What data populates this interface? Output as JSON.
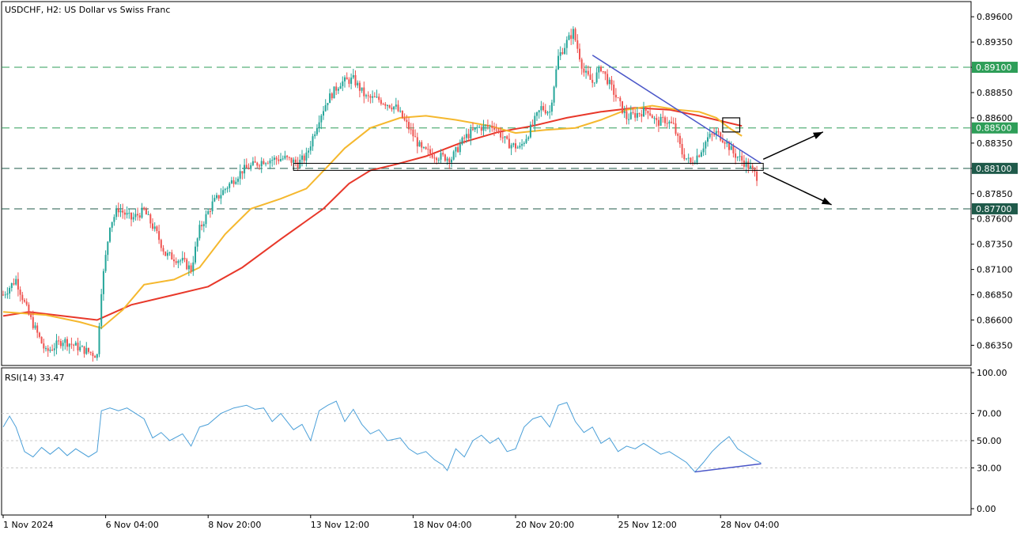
{
  "main_pane": {
    "title": "USDCHF, H2:  US Dollar vs Swiss Franc",
    "y_ticks": [
      "0.89600",
      "0.89350",
      "0.89100",
      "0.88850",
      "0.88600",
      "0.88350",
      "0.88100",
      "0.87850",
      "0.87600",
      "0.87350",
      "0.87100",
      "0.86850",
      "0.86600",
      "0.86350"
    ],
    "y_tick_values": [
      0.896,
      0.8935,
      0.891,
      0.8885,
      0.886,
      0.8835,
      0.881,
      0.8785,
      0.876,
      0.8735,
      0.871,
      0.8685,
      0.866,
      0.8635
    ],
    "level_labels": [
      {
        "text": "0.89100",
        "value": 0.891,
        "color": "#2e9e58"
      },
      {
        "text": "0.88500",
        "value": 0.885,
        "color": "#2e9e58"
      },
      {
        "text": "0.88100",
        "value": 0.881,
        "color": "#1f5a4a"
      },
      {
        "text": "0.87700",
        "value": 0.877,
        "color": "#1f5a4a"
      }
    ]
  },
  "rsi_pane": {
    "title": "RSI(14) 33.47",
    "y_ticks": [
      "100.00",
      "70.00",
      "50.00",
      "30.00",
      "0.00"
    ],
    "y_tick_values": [
      100,
      70,
      50,
      30,
      0
    ]
  },
  "x_axis": {
    "labels": [
      "1 Nov 2024",
      "6 Nov 04:00",
      "8 Nov 20:00",
      "13 Nov 12:00",
      "18 Nov 04:00",
      "20 Nov 20:00",
      "25 Nov 12:00",
      "28 Nov 04:00"
    ],
    "bar_index": [
      0,
      48,
      96,
      144,
      192,
      240,
      288,
      336
    ]
  },
  "colors": {
    "bull": "#26a69a",
    "bear": "#ef5350",
    "ma_slow": "#e8382a",
    "ma_fast": "#f5b82e",
    "rsi": "#4a9fd8",
    "trendline": "#4a56c8",
    "level_green": "#2e9e58",
    "level_dark": "#1f5a4a",
    "grid": "#c8c8c8"
  },
  "chart_data": [
    {
      "type": "candlestick",
      "symbol": "USDCHF",
      "timeframe": "H2",
      "title": "USDCHF, H2:  US Dollar vs Swiss Franc",
      "ylim": [
        0.8615,
        0.8975
      ],
      "x_range_bars": [
        0,
        360
      ],
      "price_path": [
        {
          "bar": 0,
          "price": 0.8685
        },
        {
          "bar": 6,
          "price": 0.87
        },
        {
          "bar": 12,
          "price": 0.8665
        },
        {
          "bar": 20,
          "price": 0.8628
        },
        {
          "bar": 28,
          "price": 0.864
        },
        {
          "bar": 36,
          "price": 0.8632
        },
        {
          "bar": 44,
          "price": 0.8625
        },
        {
          "bar": 46,
          "price": 0.869
        },
        {
          "bar": 50,
          "price": 0.8755
        },
        {
          "bar": 54,
          "price": 0.877
        },
        {
          "bar": 60,
          "price": 0.876
        },
        {
          "bar": 66,
          "price": 0.8768
        },
        {
          "bar": 72,
          "price": 0.8745
        },
        {
          "bar": 76,
          "price": 0.8725
        },
        {
          "bar": 84,
          "price": 0.8718
        },
        {
          "bar": 88,
          "price": 0.871
        },
        {
          "bar": 92,
          "price": 0.875
        },
        {
          "bar": 98,
          "price": 0.8775
        },
        {
          "bar": 104,
          "price": 0.879
        },
        {
          "bar": 112,
          "price": 0.8808
        },
        {
          "bar": 122,
          "price": 0.8818
        },
        {
          "bar": 132,
          "price": 0.882
        },
        {
          "bar": 138,
          "price": 0.8815
        },
        {
          "bar": 142,
          "price": 0.8822
        },
        {
          "bar": 148,
          "price": 0.886
        },
        {
          "bar": 152,
          "price": 0.8878
        },
        {
          "bar": 158,
          "price": 0.8895
        },
        {
          "bar": 164,
          "price": 0.8898
        },
        {
          "bar": 170,
          "price": 0.888
        },
        {
          "bar": 176,
          "price": 0.8878
        },
        {
          "bar": 184,
          "price": 0.887
        },
        {
          "bar": 190,
          "price": 0.885
        },
        {
          "bar": 196,
          "price": 0.8828
        },
        {
          "bar": 204,
          "price": 0.8822
        },
        {
          "bar": 210,
          "price": 0.882
        },
        {
          "bar": 216,
          "price": 0.884
        },
        {
          "bar": 222,
          "price": 0.885
        },
        {
          "bar": 230,
          "price": 0.8852
        },
        {
          "bar": 236,
          "price": 0.8835
        },
        {
          "bar": 242,
          "price": 0.883
        },
        {
          "bar": 246,
          "price": 0.8845
        },
        {
          "bar": 252,
          "price": 0.887
        },
        {
          "bar": 256,
          "price": 0.8866
        },
        {
          "bar": 260,
          "price": 0.892
        },
        {
          "bar": 264,
          "price": 0.8935
        },
        {
          "bar": 267,
          "price": 0.8945
        },
        {
          "bar": 272,
          "price": 0.8905
        },
        {
          "bar": 276,
          "price": 0.8895
        },
        {
          "bar": 280,
          "price": 0.891
        },
        {
          "bar": 286,
          "price": 0.8885
        },
        {
          "bar": 292,
          "price": 0.886
        },
        {
          "bar": 298,
          "price": 0.8865
        },
        {
          "bar": 302,
          "price": 0.8868
        },
        {
          "bar": 306,
          "price": 0.8855
        },
        {
          "bar": 310,
          "price": 0.8858
        },
        {
          "bar": 314,
          "price": 0.8852
        },
        {
          "bar": 318,
          "price": 0.8825
        },
        {
          "bar": 322,
          "price": 0.8815
        },
        {
          "bar": 326,
          "price": 0.8825
        },
        {
          "bar": 330,
          "price": 0.884
        },
        {
          "bar": 334,
          "price": 0.8845
        },
        {
          "bar": 338,
          "price": 0.8838
        },
        {
          "bar": 342,
          "price": 0.8825
        },
        {
          "bar": 346,
          "price": 0.8818
        },
        {
          "bar": 350,
          "price": 0.881
        },
        {
          "bar": 353,
          "price": 0.8802
        }
      ],
      "ma_fast": [
        {
          "bar": 0,
          "price": 0.8668
        },
        {
          "bar": 20,
          "price": 0.8665
        },
        {
          "bar": 36,
          "price": 0.8658
        },
        {
          "bar": 46,
          "price": 0.8652
        },
        {
          "bar": 56,
          "price": 0.867
        },
        {
          "bar": 66,
          "price": 0.8695
        },
        {
          "bar": 80,
          "price": 0.87
        },
        {
          "bar": 92,
          "price": 0.8712
        },
        {
          "bar": 104,
          "price": 0.8745
        },
        {
          "bar": 116,
          "price": 0.877
        },
        {
          "bar": 130,
          "price": 0.878
        },
        {
          "bar": 142,
          "price": 0.879
        },
        {
          "bar": 152,
          "price": 0.8812
        },
        {
          "bar": 160,
          "price": 0.883
        },
        {
          "bar": 172,
          "price": 0.885
        },
        {
          "bar": 186,
          "price": 0.886
        },
        {
          "bar": 198,
          "price": 0.8862
        },
        {
          "bar": 212,
          "price": 0.8858
        },
        {
          "bar": 228,
          "price": 0.8852
        },
        {
          "bar": 240,
          "price": 0.8845
        },
        {
          "bar": 254,
          "price": 0.8848
        },
        {
          "bar": 268,
          "price": 0.885
        },
        {
          "bar": 280,
          "price": 0.8858
        },
        {
          "bar": 292,
          "price": 0.8868
        },
        {
          "bar": 304,
          "price": 0.8872
        },
        {
          "bar": 316,
          "price": 0.8868
        },
        {
          "bar": 326,
          "price": 0.8866
        },
        {
          "bar": 334,
          "price": 0.886
        },
        {
          "bar": 340,
          "price": 0.885
        },
        {
          "bar": 346,
          "price": 0.8842
        }
      ],
      "ma_slow": [
        {
          "bar": 0,
          "price": 0.8664
        },
        {
          "bar": 12,
          "price": 0.8668
        },
        {
          "bar": 28,
          "price": 0.8664
        },
        {
          "bar": 44,
          "price": 0.866
        },
        {
          "bar": 60,
          "price": 0.8675
        },
        {
          "bar": 80,
          "price": 0.8685
        },
        {
          "bar": 96,
          "price": 0.8693
        },
        {
          "bar": 112,
          "price": 0.8712
        },
        {
          "bar": 130,
          "price": 0.874
        },
        {
          "bar": 150,
          "price": 0.877
        },
        {
          "bar": 162,
          "price": 0.8795
        },
        {
          "bar": 172,
          "price": 0.8808
        },
        {
          "bar": 184,
          "price": 0.8814
        },
        {
          "bar": 198,
          "price": 0.8822
        },
        {
          "bar": 214,
          "price": 0.8835
        },
        {
          "bar": 232,
          "price": 0.8846
        },
        {
          "bar": 248,
          "price": 0.8852
        },
        {
          "bar": 264,
          "price": 0.886
        },
        {
          "bar": 280,
          "price": 0.8866
        },
        {
          "bar": 296,
          "price": 0.887
        },
        {
          "bar": 312,
          "price": 0.8868
        },
        {
          "bar": 326,
          "price": 0.8862
        },
        {
          "bar": 338,
          "price": 0.8856
        },
        {
          "bar": 346,
          "price": 0.8852
        }
      ],
      "horizontal_levels": [
        0.891,
        0.885,
        0.881,
        0.877
      ],
      "trendline": {
        "from": {
          "bar": 276,
          "price": 0.8922
        },
        "to": {
          "bar": 355,
          "price": 0.8815
        }
      },
      "support_zone": {
        "from_bar": 136,
        "to_bar": 356,
        "low": 0.8808,
        "high": 0.8815
      },
      "highlight_box": {
        "from_bar": 337,
        "to_bar": 345,
        "low": 0.8846,
        "high": 0.886
      },
      "projection_arrows": [
        {
          "from": {
            "bar": 356,
            "price": 0.8819
          },
          "to": {
            "bar": 384,
            "price": 0.8846
          }
        },
        {
          "from": {
            "bar": 356,
            "price": 0.8806
          },
          "to": {
            "bar": 388,
            "price": 0.8774
          }
        }
      ]
    },
    {
      "type": "line",
      "title": "RSI(14) 33.47",
      "ylim": [
        0,
        100
      ],
      "levels": [
        70,
        50,
        30
      ],
      "rsi_path": [
        {
          "bar": 0,
          "value": 60
        },
        {
          "bar": 3,
          "value": 68
        },
        {
          "bar": 6,
          "value": 60
        },
        {
          "bar": 10,
          "value": 42
        },
        {
          "bar": 14,
          "value": 38
        },
        {
          "bar": 18,
          "value": 45
        },
        {
          "bar": 22,
          "value": 40
        },
        {
          "bar": 26,
          "value": 45
        },
        {
          "bar": 30,
          "value": 39
        },
        {
          "bar": 34,
          "value": 44
        },
        {
          "bar": 40,
          "value": 38
        },
        {
          "bar": 44,
          "value": 42
        },
        {
          "bar": 46,
          "value": 72
        },
        {
          "bar": 50,
          "value": 74
        },
        {
          "bar": 54,
          "value": 72
        },
        {
          "bar": 58,
          "value": 74
        },
        {
          "bar": 62,
          "value": 70
        },
        {
          "bar": 66,
          "value": 66
        },
        {
          "bar": 70,
          "value": 52
        },
        {
          "bar": 74,
          "value": 56
        },
        {
          "bar": 78,
          "value": 50
        },
        {
          "bar": 84,
          "value": 55
        },
        {
          "bar": 88,
          "value": 46
        },
        {
          "bar": 92,
          "value": 60
        },
        {
          "bar": 96,
          "value": 62
        },
        {
          "bar": 102,
          "value": 70
        },
        {
          "bar": 108,
          "value": 74
        },
        {
          "bar": 114,
          "value": 76
        },
        {
          "bar": 118,
          "value": 73
        },
        {
          "bar": 122,
          "value": 74
        },
        {
          "bar": 126,
          "value": 64
        },
        {
          "bar": 130,
          "value": 70
        },
        {
          "bar": 136,
          "value": 58
        },
        {
          "bar": 140,
          "value": 62
        },
        {
          "bar": 144,
          "value": 50
        },
        {
          "bar": 148,
          "value": 72
        },
        {
          "bar": 152,
          "value": 76
        },
        {
          "bar": 156,
          "value": 79
        },
        {
          "bar": 160,
          "value": 64
        },
        {
          "bar": 164,
          "value": 73
        },
        {
          "bar": 168,
          "value": 62
        },
        {
          "bar": 172,
          "value": 55
        },
        {
          "bar": 176,
          "value": 58
        },
        {
          "bar": 180,
          "value": 50
        },
        {
          "bar": 186,
          "value": 52
        },
        {
          "bar": 190,
          "value": 44
        },
        {
          "bar": 194,
          "value": 40
        },
        {
          "bar": 198,
          "value": 42
        },
        {
          "bar": 202,
          "value": 36
        },
        {
          "bar": 206,
          "value": 32
        },
        {
          "bar": 208,
          "value": 28
        },
        {
          "bar": 212,
          "value": 44
        },
        {
          "bar": 216,
          "value": 38
        },
        {
          "bar": 220,
          "value": 50
        },
        {
          "bar": 224,
          "value": 54
        },
        {
          "bar": 228,
          "value": 48
        },
        {
          "bar": 232,
          "value": 52
        },
        {
          "bar": 236,
          "value": 42
        },
        {
          "bar": 240,
          "value": 44
        },
        {
          "bar": 244,
          "value": 60
        },
        {
          "bar": 248,
          "value": 66
        },
        {
          "bar": 252,
          "value": 68
        },
        {
          "bar": 256,
          "value": 60
        },
        {
          "bar": 260,
          "value": 76
        },
        {
          "bar": 264,
          "value": 78
        },
        {
          "bar": 268,
          "value": 64
        },
        {
          "bar": 272,
          "value": 56
        },
        {
          "bar": 276,
          "value": 60
        },
        {
          "bar": 280,
          "value": 48
        },
        {
          "bar": 284,
          "value": 52
        },
        {
          "bar": 288,
          "value": 42
        },
        {
          "bar": 292,
          "value": 46
        },
        {
          "bar": 296,
          "value": 44
        },
        {
          "bar": 300,
          "value": 48
        },
        {
          "bar": 304,
          "value": 44
        },
        {
          "bar": 308,
          "value": 40
        },
        {
          "bar": 312,
          "value": 42
        },
        {
          "bar": 316,
          "value": 38
        },
        {
          "bar": 320,
          "value": 34
        },
        {
          "bar": 324,
          "value": 27
        },
        {
          "bar": 328,
          "value": 34
        },
        {
          "bar": 332,
          "value": 42
        },
        {
          "bar": 336,
          "value": 48
        },
        {
          "bar": 340,
          "value": 53
        },
        {
          "bar": 344,
          "value": 44
        },
        {
          "bar": 348,
          "value": 40
        },
        {
          "bar": 352,
          "value": 36
        },
        {
          "bar": 355,
          "value": 33.47
        }
      ],
      "divergence_line": {
        "from": {
          "bar": 324,
          "value": 27
        },
        "to": {
          "bar": 355,
          "value": 33
        }
      }
    }
  ]
}
